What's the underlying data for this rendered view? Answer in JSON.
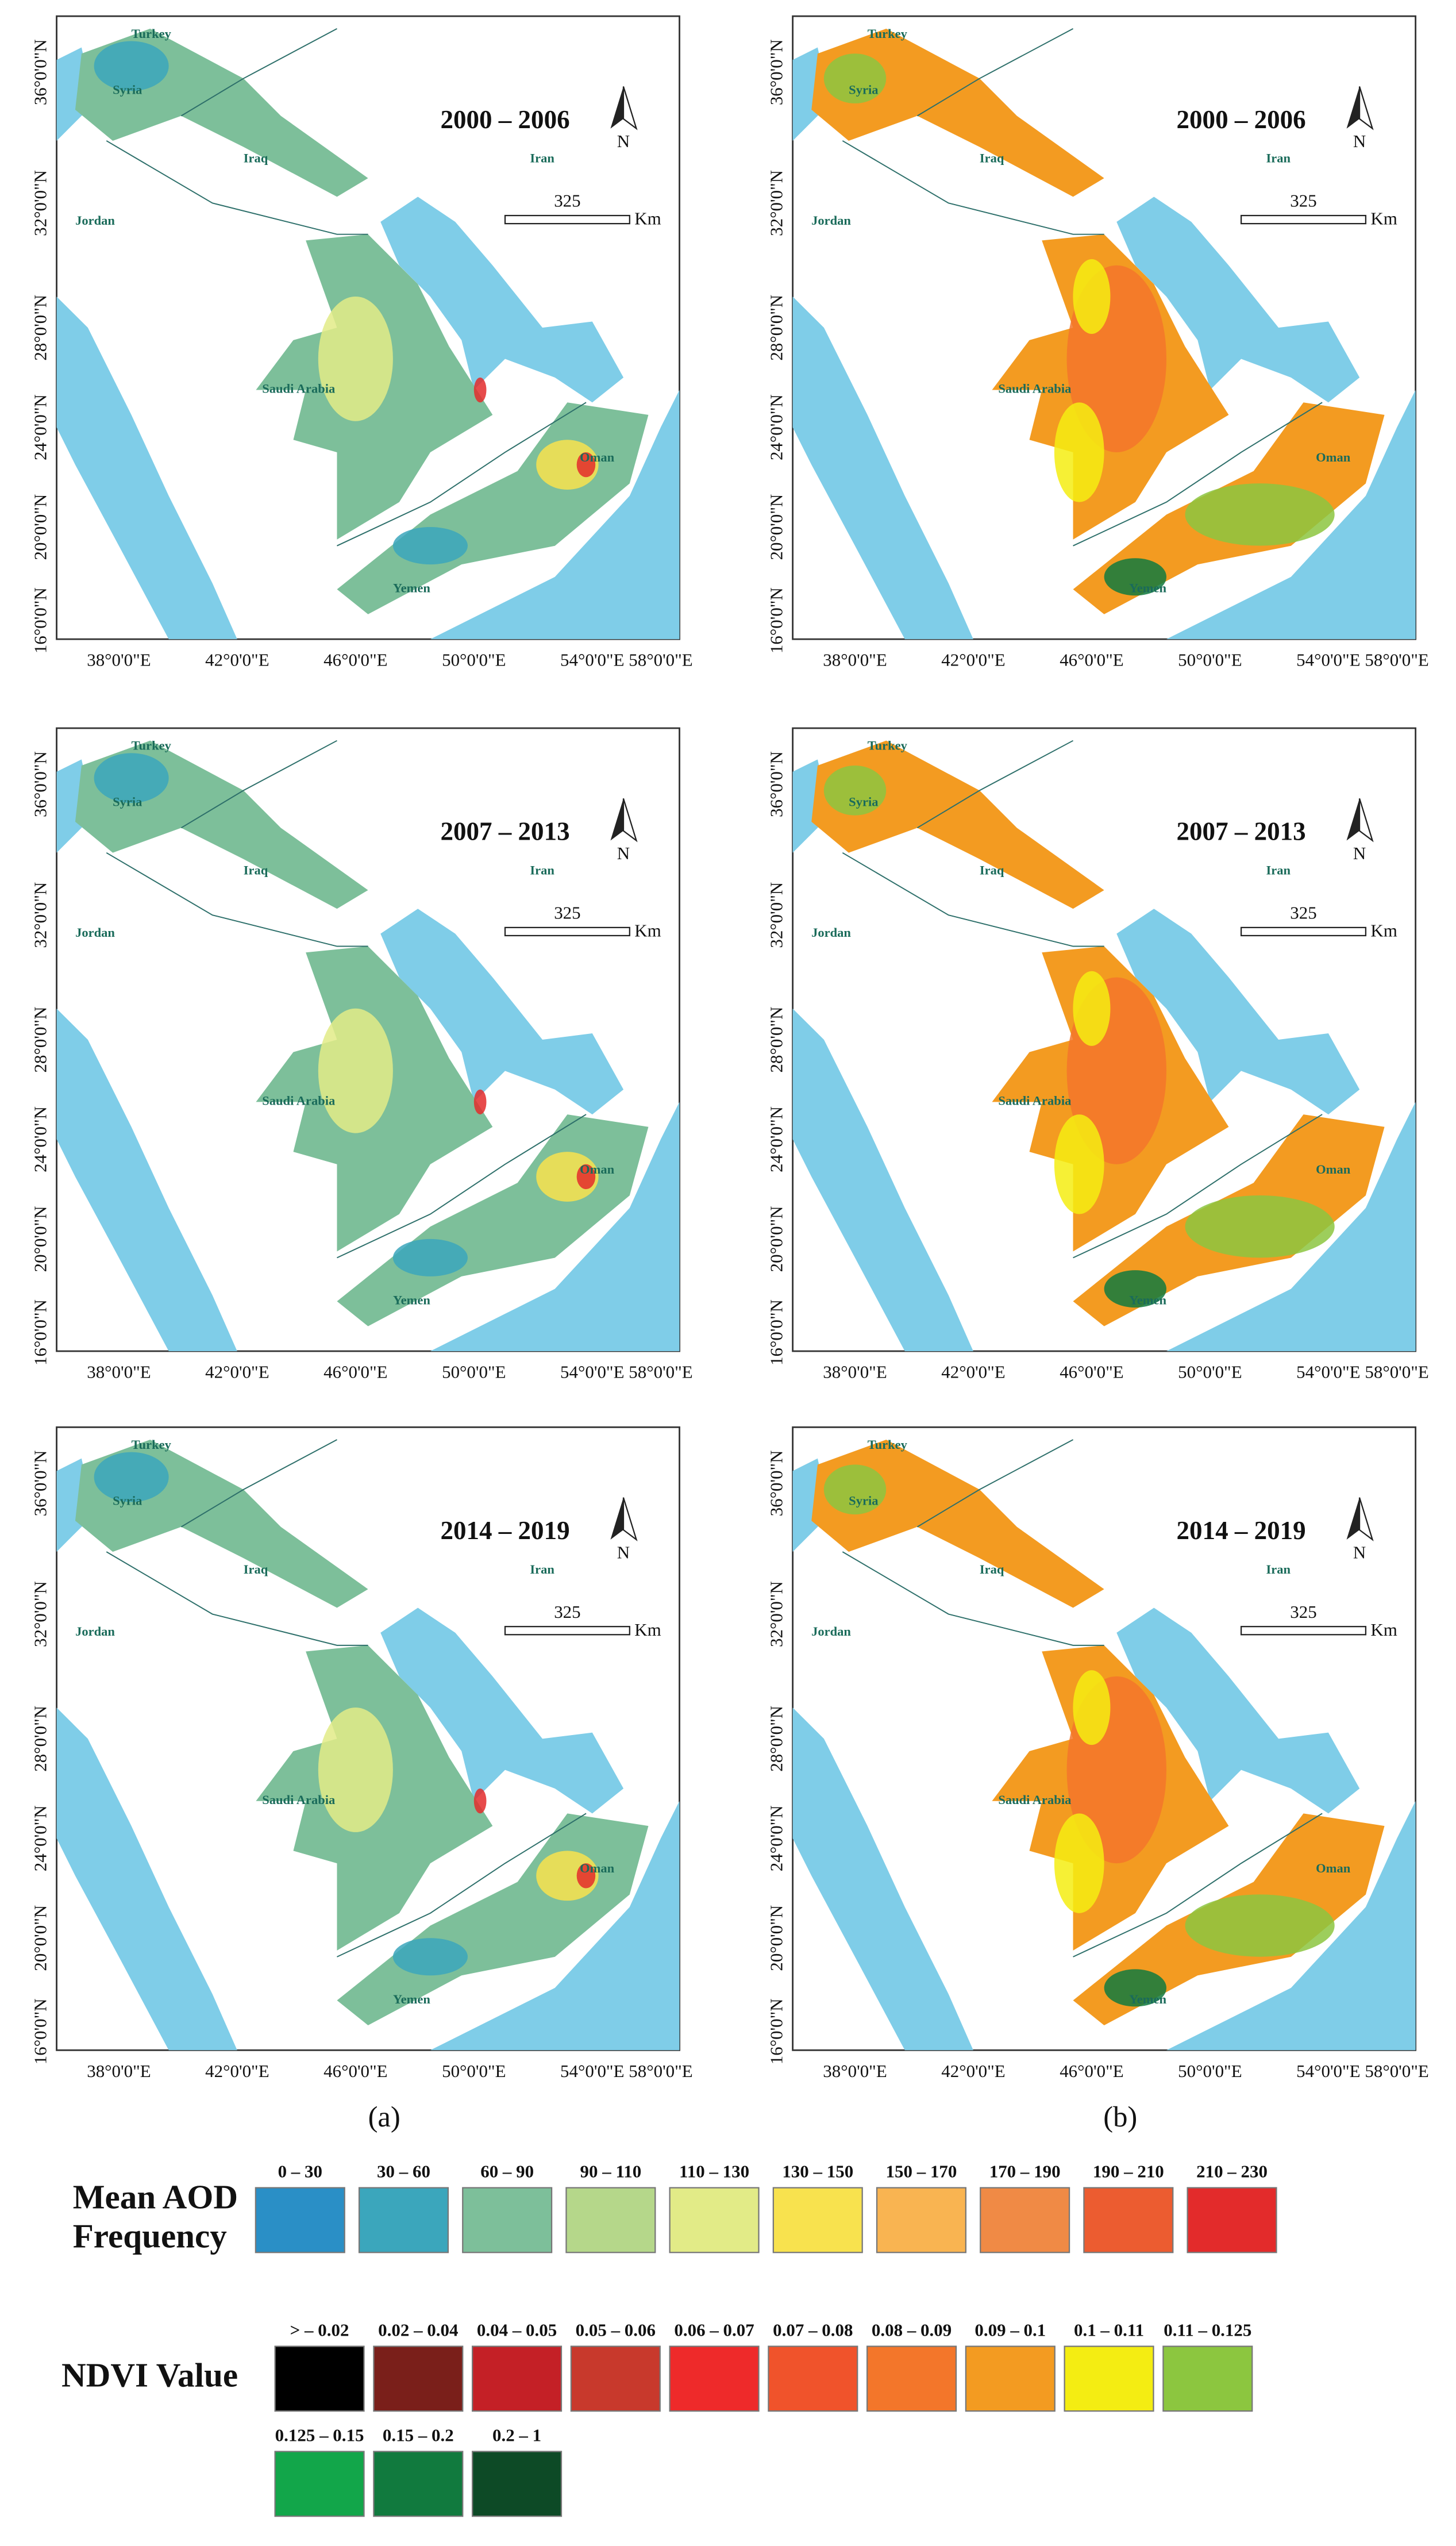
{
  "columns": [
    {
      "label": "(a)",
      "colorset": "aod",
      "periods": [
        "2000 – 2006",
        "2007 – 2013",
        "2014 – 2019"
      ]
    },
    {
      "label": "(b)",
      "colorset": "ndvi",
      "periods": [
        "2000 – 2006",
        "2007 – 2013",
        "2014 – 2019"
      ]
    }
  ],
  "map_labels": {
    "places": [
      "Turkey",
      "Syria",
      "Iraq",
      "Iran",
      "Jordan",
      "Saudi Arabia",
      "Oman",
      "Yemen"
    ],
    "north": "N",
    "scale_value": "325",
    "scale_unit": "Km",
    "lat_labels": [
      "36°0'0\"N",
      "32°0'0\"N",
      "28°0'0\"N",
      "24°0'0\"N",
      "20°0'0\"N",
      "16°0'0\"N"
    ],
    "lon_labels": [
      "38°0'0\"E",
      "42°0'0\"E",
      "46°0'0\"E",
      "50°0'0\"E",
      "54°0'0\"E",
      "58°0'0\"E"
    ]
  },
  "legends": {
    "aod": {
      "title": [
        "Mean AOD",
        "Frequency"
      ],
      "classes": [
        {
          "label": "0 – 30",
          "color": "#2a8fc6"
        },
        {
          "label": "30 – 60",
          "color": "#3ba6bc"
        },
        {
          "label": "60 – 90",
          "color": "#7dbf9a"
        },
        {
          "label": "90 – 110",
          "color": "#b5d78a"
        },
        {
          "label": "110 – 130",
          "color": "#e2eb87"
        },
        {
          "label": "130 – 150",
          "color": "#f8e24e"
        },
        {
          "label": "150 – 170",
          "color": "#f9b451"
        },
        {
          "label": "170 – 190",
          "color": "#f08a45"
        },
        {
          "label": "190 – 210",
          "color": "#ec5c30"
        },
        {
          "label": "210 – 230",
          "color": "#e32b2b"
        }
      ]
    },
    "ndvi": {
      "title": [
        "NDVI Value"
      ],
      "classes": [
        {
          "label": "> – 0.02",
          "color": "#000000"
        },
        {
          "label": "0.02 – 0.04",
          "color": "#7a1f1a"
        },
        {
          "label": "0.04 – 0.05",
          "color": "#c42026"
        },
        {
          "label": "0.05 – 0.06",
          "color": "#c8392c"
        },
        {
          "label": "0.06 – 0.07",
          "color": "#ee2a2a"
        },
        {
          "label": "0.07 – 0.08",
          "color": "#f0532b"
        },
        {
          "label": "0.08 – 0.09",
          "color": "#f3762a"
        },
        {
          "label": "0.09 – 0.1",
          "color": "#f39b21"
        },
        {
          "label": "0.1 – 0.11",
          "color": "#f4ed12"
        },
        {
          "label": "0.11 – 0.125",
          "color": "#8cc63f"
        },
        {
          "label": "0.125 – 0.15",
          "color": "#12a64a"
        },
        {
          "label": "0.15 – 0.2",
          "color": "#117a3e"
        },
        {
          "label": "0.2 – 1",
          "color": "#0d4a26"
        }
      ]
    }
  }
}
